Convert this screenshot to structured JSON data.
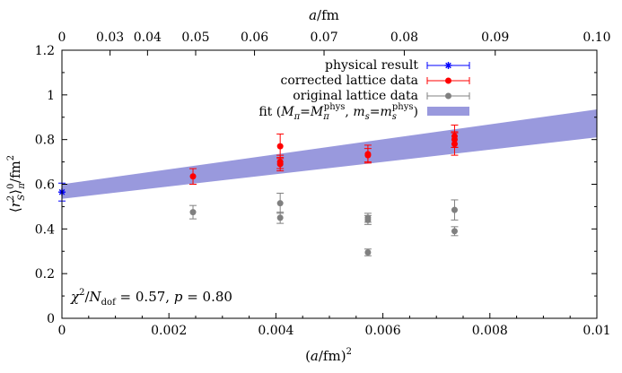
{
  "chart_data": {
    "type": "scatter",
    "xlabel_parts": [
      "(",
      "a",
      "/fm)",
      "2"
    ],
    "ylabel_parts": [
      "⟨",
      "r",
      "2",
      "S",
      "⟩",
      "0",
      "π",
      "/fm",
      "2"
    ],
    "x2label_parts": [
      "a",
      "/fm"
    ],
    "xlim": [
      0,
      0.01
    ],
    "ylim": [
      0,
      1.2
    ],
    "x_ticks": [
      0,
      0.002,
      0.004,
      0.006,
      0.008,
      0.01
    ],
    "x_tick_labels": [
      "0",
      "0.002",
      "0.004",
      "0.006",
      "0.008",
      "0.01"
    ],
    "y_ticks": [
      0,
      0.2,
      0.4,
      0.6,
      0.8,
      1.0,
      1.2
    ],
    "y_tick_labels": [
      "0",
      "0.2",
      "0.4",
      "0.6",
      "0.8",
      "1",
      "1.2"
    ],
    "x2_ticks": [
      0,
      0.03,
      0.04,
      0.05,
      0.06,
      0.07,
      0.08,
      0.09,
      0.1
    ],
    "x2_tick_labels": [
      "0",
      "0.03",
      "0.04",
      "0.05",
      "0.06",
      "0.07",
      "0.08",
      "0.09",
      "0.10"
    ],
    "legend_position": "top-right",
    "grid": false,
    "series": [
      {
        "name": "physical result",
        "color": "#0000ff",
        "marker": "star",
        "points": [
          {
            "x": 0.0,
            "y": 0.565,
            "yerr": 0.04,
            "xerr": 1e-05
          }
        ]
      },
      {
        "name": "corrected lattice data",
        "color": "#ff0000",
        "marker": "circle",
        "points": [
          {
            "x": 0.00245,
            "y": 0.635,
            "yerr": 0.035,
            "xerr": 2e-05
          },
          {
            "x": 0.00408,
            "y": 0.77,
            "yerr": 0.055,
            "xerr": 2e-05
          },
          {
            "x": 0.00408,
            "y": 0.7,
            "yerr": 0.03,
            "xerr": 2e-05
          },
          {
            "x": 0.00408,
            "y": 0.69,
            "yerr": 0.03,
            "xerr": 2e-05
          },
          {
            "x": 0.00572,
            "y": 0.735,
            "yerr": 0.04,
            "xerr": 3e-05
          },
          {
            "x": 0.00572,
            "y": 0.73,
            "yerr": 0.03,
            "xerr": 3e-05
          },
          {
            "x": 0.00734,
            "y": 0.815,
            "yerr": 0.05,
            "xerr": 3e-05
          },
          {
            "x": 0.00734,
            "y": 0.8,
            "yerr": 0.035,
            "xerr": 3e-05
          },
          {
            "x": 0.00734,
            "y": 0.78,
            "yerr": 0.05,
            "xerr": 3e-05
          }
        ]
      },
      {
        "name": "original lattice data",
        "color": "#808080",
        "marker": "circle",
        "points": [
          {
            "x": 0.00245,
            "y": 0.475,
            "yerr": 0.03,
            "xerr": 2e-05
          },
          {
            "x": 0.00408,
            "y": 0.515,
            "yerr": 0.045,
            "xerr": 2e-05
          },
          {
            "x": 0.00408,
            "y": 0.45,
            "yerr": 0.025,
            "xerr": 2e-05
          },
          {
            "x": 0.00572,
            "y": 0.45,
            "yerr": 0.02,
            "xerr": 3e-05
          },
          {
            "x": 0.00572,
            "y": 0.44,
            "yerr": 0.02,
            "xerr": 3e-05
          },
          {
            "x": 0.00572,
            "y": 0.295,
            "yerr": 0.015,
            "xerr": 3e-05
          },
          {
            "x": 0.00734,
            "y": 0.485,
            "yerr": 0.045,
            "xerr": 3e-05
          },
          {
            "x": 0.00734,
            "y": 0.39,
            "yerr": 0.02,
            "xerr": 3e-05
          }
        ]
      }
    ],
    "fit_band": {
      "name_parts": [
        "fit (",
        "M",
        "π",
        "=",
        "M",
        "π",
        "phys",
        ", ",
        "m",
        "s",
        "=",
        "m",
        "s",
        "phys",
        ")"
      ],
      "color": "#9999dd",
      "x": [
        0,
        0.01
      ],
      "lower": [
        0.535,
        0.81
      ],
      "upper": [
        0.6,
        0.935
      ]
    },
    "annotation_parts": [
      "χ",
      "2",
      "/",
      "N",
      "dof",
      " = 0.57, ",
      "p",
      " = 0.80"
    ]
  }
}
